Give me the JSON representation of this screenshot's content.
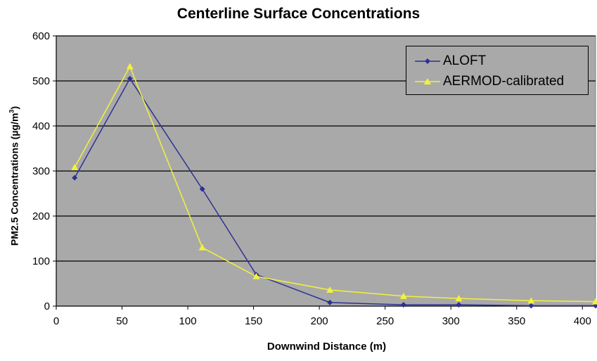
{
  "chart_data": {
    "type": "line",
    "title": "Centerline Surface Concentrations",
    "xlabel": "Downwind Distance (m)",
    "ylabel": "PM2.5 Concentrations (µg/m",
    "ylabel_sup": "3",
    "ylabel_tail": ")",
    "xlim": [
      0,
      410
    ],
    "ylim": [
      0,
      600
    ],
    "x_ticks": [
      0,
      50,
      100,
      150,
      200,
      250,
      300,
      350,
      400
    ],
    "y_ticks": [
      0,
      100,
      200,
      300,
      400,
      500,
      600
    ],
    "grid": "horizontal",
    "background": "#a9a9a9",
    "legend_position": "top-right",
    "series": [
      {
        "name": "ALOFT",
        "color": "#2e3192",
        "marker": "diamond",
        "x": [
          14,
          56,
          111,
          152,
          208,
          264,
          306,
          361,
          410
        ],
        "y": [
          285,
          505,
          260,
          70,
          8,
          3,
          3,
          1,
          1
        ]
      },
      {
        "name": "AERMOD-calibrated",
        "color": "#f2f23c",
        "marker": "triangle",
        "x": [
          14,
          56,
          111,
          152,
          208,
          264,
          306,
          361,
          410
        ],
        "y": [
          308,
          532,
          130,
          66,
          36,
          22,
          17,
          12,
          10
        ]
      }
    ]
  }
}
